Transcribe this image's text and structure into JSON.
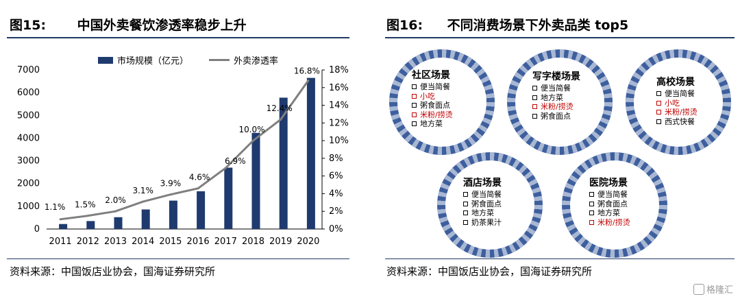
{
  "left": {
    "fig_num": "图15:",
    "title": "中国外卖餐饮渗透率稳步上升",
    "source": "资料来源：中国饭店业协会，国海证券研究所"
  },
  "right": {
    "fig_num": "图16:",
    "title": "不同消费场景下外卖品类 top5",
    "source": "资料来源：中国饭店业协会，国海证券研究所",
    "scenes": [
      {
        "name": "社区场景",
        "items": [
          {
            "text": "便当简餐",
            "hl": false
          },
          {
            "text": "小吃",
            "hl": true
          },
          {
            "text": "粥食面点",
            "hl": false
          },
          {
            "text": "米粉/捞烫",
            "hl": true
          },
          {
            "text": "地方菜",
            "hl": false
          }
        ]
      },
      {
        "name": "写字楼场景",
        "items": [
          {
            "text": "便当简餐",
            "hl": false
          },
          {
            "text": "地方菜",
            "hl": false
          },
          {
            "text": "米粉/捞烫",
            "hl": true
          },
          {
            "text": "粥食面点",
            "hl": false
          }
        ]
      },
      {
        "name": "高校场景",
        "items": [
          {
            "text": "便当简餐",
            "hl": false
          },
          {
            "text": "小吃",
            "hl": true
          },
          {
            "text": "米粉/捞烫",
            "hl": true
          },
          {
            "text": "西式快餐",
            "hl": false
          }
        ]
      },
      {
        "name": "酒店场景",
        "items": [
          {
            "text": "便当简餐",
            "hl": false
          },
          {
            "text": "粥食面点",
            "hl": false
          },
          {
            "text": "地方菜",
            "hl": false
          },
          {
            "text": "奶茶果汁",
            "hl": false
          }
        ]
      },
      {
        "name": "医院场景",
        "items": [
          {
            "text": "便当简餐",
            "hl": false
          },
          {
            "text": "粥食面点",
            "hl": false
          },
          {
            "text": "地方菜",
            "hl": false
          },
          {
            "text": "米粉/捞烫",
            "hl": true
          }
        ]
      }
    ]
  },
  "watermark": "格隆汇",
  "colors": {
    "bar": "#1f3a6e",
    "line": "#7f7f7f",
    "rule": "#1f3864",
    "highlight": "#c00000",
    "ring": "#3e5f9e"
  },
  "chart_data": {
    "type": "bar",
    "categories": [
      "2011",
      "2012",
      "2013",
      "2014",
      "2015",
      "2016",
      "2017",
      "2018",
      "2019",
      "2020"
    ],
    "series": [
      {
        "name": "市场规模（亿元）",
        "type": "bar",
        "axis": "left",
        "values": [
          220,
          350,
          520,
          860,
          1250,
          1660,
          2700,
          4230,
          5780,
          6650
        ]
      },
      {
        "name": "外卖渗透率",
        "type": "line",
        "axis": "right",
        "values": [
          1.1,
          1.5,
          2.0,
          3.1,
          3.9,
          4.6,
          6.9,
          10.0,
          12.4,
          16.8
        ],
        "labels": [
          "1.1%",
          "1.5%",
          "2.0%",
          "3.1%",
          "3.9%",
          "4.6%",
          "6.9%",
          "10.0%",
          "12.4%",
          "16.8%"
        ]
      }
    ],
    "ylim": [
      0,
      7000
    ],
    "yticks": [
      "0",
      "1000",
      "2000",
      "3000",
      "4000",
      "5000",
      "6000",
      "7000"
    ],
    "y2lim": [
      0,
      18
    ],
    "y2ticks": [
      "0%",
      "2%",
      "4%",
      "6%",
      "8%",
      "10%",
      "12%",
      "14%",
      "16%",
      "18%"
    ],
    "legend_position": "top"
  }
}
